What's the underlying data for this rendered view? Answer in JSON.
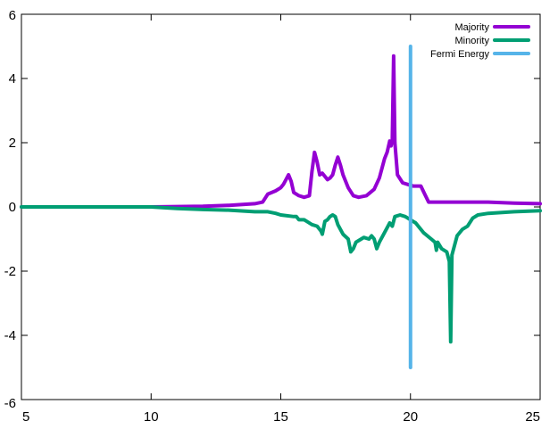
{
  "chart_data": {
    "type": "line",
    "title": "",
    "xlabel": "",
    "ylabel": "",
    "xlim": [
      5,
      25
    ],
    "ylim": [
      -6,
      6
    ],
    "x_ticks": [
      "5",
      "10",
      "15",
      "20",
      "25"
    ],
    "y_ticks": [
      "-6",
      "-4",
      "-2",
      "0",
      "2",
      "4",
      "6"
    ],
    "grid": false,
    "legend_position": "top-right",
    "series": [
      {
        "name": "Majority",
        "color": "#9400d3",
        "points": [
          [
            5.0,
            0.0
          ],
          [
            10.0,
            0.0
          ],
          [
            11.0,
            0.01
          ],
          [
            12.0,
            0.02
          ],
          [
            13.0,
            0.05
          ],
          [
            14.0,
            0.1
          ],
          [
            14.3,
            0.15
          ],
          [
            14.5,
            0.4
          ],
          [
            14.8,
            0.5
          ],
          [
            15.0,
            0.6
          ],
          [
            15.1,
            0.7
          ],
          [
            15.2,
            0.85
          ],
          [
            15.3,
            1.0
          ],
          [
            15.4,
            0.8
          ],
          [
            15.5,
            0.45
          ],
          [
            15.7,
            0.35
          ],
          [
            15.9,
            0.3
          ],
          [
            16.1,
            0.35
          ],
          [
            16.2,
            1.1
          ],
          [
            16.3,
            1.7
          ],
          [
            16.4,
            1.4
          ],
          [
            16.5,
            1.0
          ],
          [
            16.6,
            1.05
          ],
          [
            16.7,
            0.95
          ],
          [
            16.8,
            0.85
          ],
          [
            16.9,
            0.9
          ],
          [
            17.0,
            1.0
          ],
          [
            17.1,
            1.3
          ],
          [
            17.2,
            1.55
          ],
          [
            17.3,
            1.3
          ],
          [
            17.4,
            1.0
          ],
          [
            17.6,
            0.6
          ],
          [
            17.8,
            0.35
          ],
          [
            18.0,
            0.3
          ],
          [
            18.3,
            0.35
          ],
          [
            18.6,
            0.55
          ],
          [
            18.8,
            0.9
          ],
          [
            19.0,
            1.5
          ],
          [
            19.1,
            1.7
          ],
          [
            19.2,
            2.05
          ],
          [
            19.25,
            1.9
          ],
          [
            19.3,
            2.1
          ],
          [
            19.35,
            4.7
          ],
          [
            19.4,
            2.0
          ],
          [
            19.5,
            1.0
          ],
          [
            19.7,
            0.75
          ],
          [
            19.9,
            0.7
          ],
          [
            20.1,
            0.65
          ],
          [
            20.4,
            0.65
          ],
          [
            20.55,
            0.4
          ],
          [
            20.7,
            0.15
          ],
          [
            21.0,
            0.15
          ],
          [
            22.0,
            0.15
          ],
          [
            23.0,
            0.15
          ],
          [
            24.0,
            0.12
          ],
          [
            25.0,
            0.1
          ]
        ]
      },
      {
        "name": "Minority",
        "color": "#009e73",
        "points": [
          [
            5.0,
            0.0
          ],
          [
            10.0,
            0.0
          ],
          [
            11.0,
            -0.05
          ],
          [
            12.0,
            -0.08
          ],
          [
            13.0,
            -0.1
          ],
          [
            14.0,
            -0.15
          ],
          [
            14.5,
            -0.15
          ],
          [
            14.8,
            -0.2
          ],
          [
            15.0,
            -0.25
          ],
          [
            15.5,
            -0.3
          ],
          [
            15.6,
            -0.3
          ],
          [
            15.7,
            -0.4
          ],
          [
            15.9,
            -0.4
          ],
          [
            16.0,
            -0.45
          ],
          [
            16.2,
            -0.55
          ],
          [
            16.4,
            -0.6
          ],
          [
            16.55,
            -0.75
          ],
          [
            16.6,
            -0.85
          ],
          [
            16.7,
            -0.45
          ],
          [
            16.8,
            -0.4
          ],
          [
            16.9,
            -0.3
          ],
          [
            17.0,
            -0.25
          ],
          [
            17.1,
            -0.3
          ],
          [
            17.2,
            -0.55
          ],
          [
            17.4,
            -0.85
          ],
          [
            17.6,
            -1.0
          ],
          [
            17.7,
            -1.4
          ],
          [
            17.8,
            -1.3
          ],
          [
            17.9,
            -1.1
          ],
          [
            18.1,
            -1.0
          ],
          [
            18.2,
            -0.95
          ],
          [
            18.4,
            -1.0
          ],
          [
            18.5,
            -0.9
          ],
          [
            18.6,
            -1.0
          ],
          [
            18.7,
            -1.3
          ],
          [
            18.8,
            -1.1
          ],
          [
            19.0,
            -0.8
          ],
          [
            19.2,
            -0.5
          ],
          [
            19.3,
            -0.6
          ],
          [
            19.4,
            -0.3
          ],
          [
            19.6,
            -0.25
          ],
          [
            19.8,
            -0.3
          ],
          [
            20.0,
            -0.4
          ],
          [
            20.2,
            -0.5
          ],
          [
            20.5,
            -0.8
          ],
          [
            20.8,
            -1.0
          ],
          [
            20.95,
            -1.1
          ],
          [
            21.0,
            -1.35
          ],
          [
            21.05,
            -1.1
          ],
          [
            21.2,
            -1.3
          ],
          [
            21.4,
            -1.4
          ],
          [
            21.5,
            -1.7
          ],
          [
            21.55,
            -4.2
          ],
          [
            21.6,
            -1.5
          ],
          [
            21.8,
            -0.9
          ],
          [
            22.0,
            -0.7
          ],
          [
            22.2,
            -0.6
          ],
          [
            22.4,
            -0.35
          ],
          [
            22.6,
            -0.25
          ],
          [
            23.0,
            -0.2
          ],
          [
            24.0,
            -0.15
          ],
          [
            25.0,
            -0.12
          ]
        ]
      },
      {
        "name": "Fermi Energy",
        "color": "#56b4e9",
        "points": [
          [
            20.0,
            -5.0
          ],
          [
            20.0,
            5.0
          ]
        ]
      }
    ]
  }
}
